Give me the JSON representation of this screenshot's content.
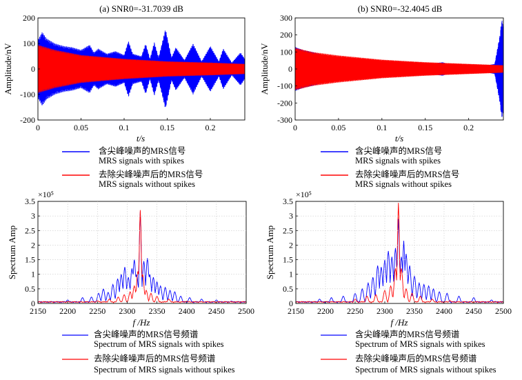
{
  "chart_data": [
    {
      "id": "a",
      "type": "line",
      "title": "(a) SNR0=-31.7039 dB",
      "xlabel": "t/s",
      "ylabel": "Amplitude/nV",
      "xlim": [
        0,
        0.24
      ],
      "ylim": [
        -200,
        200
      ],
      "xticks": [
        "0",
        "0.05",
        "0.1",
        "0.15",
        "0.2"
      ],
      "xtick_values": [
        0,
        0.05,
        0.1,
        0.15,
        0.2
      ],
      "yticks": [
        "200",
        "100",
        "0",
        "-100",
        "-200"
      ],
      "ytick_values": [
        200,
        100,
        0,
        -100,
        -200
      ],
      "series": [
        {
          "name": "含尖峰噪声的MRS信号 / MRS signals with spikes",
          "color": "#0000ff",
          "envelope": [
            [
              0,
              115
            ],
            [
              0.005,
              145
            ],
            [
              0.01,
              120
            ],
            [
              0.02,
              100
            ],
            [
              0.03,
              90
            ],
            [
              0.04,
              85
            ],
            [
              0.05,
              75
            ],
            [
              0.06,
              95
            ],
            [
              0.065,
              65
            ],
            [
              0.07,
              80
            ],
            [
              0.08,
              60
            ],
            [
              0.09,
              70
            ],
            [
              0.1,
              55
            ],
            [
              0.105,
              110
            ],
            [
              0.11,
              60
            ],
            [
              0.12,
              50
            ],
            [
              0.125,
              100
            ],
            [
              0.13,
              40
            ],
            [
              0.135,
              105
            ],
            [
              0.14,
              45
            ],
            [
              0.148,
              158
            ],
            [
              0.155,
              45
            ],
            [
              0.16,
              85
            ],
            [
              0.17,
              35
            ],
            [
              0.18,
              100
            ],
            [
              0.19,
              30
            ],
            [
              0.2,
              90
            ],
            [
              0.21,
              30
            ],
            [
              0.215,
              80
            ],
            [
              0.225,
              25
            ],
            [
              0.235,
              65
            ],
            [
              0.24,
              40
            ]
          ]
        },
        {
          "name": "去除尖峰噪声后的MRS信号 / MRS signals without spikes",
          "color": "#ff0000",
          "envelope": [
            [
              0,
              95
            ],
            [
              0.02,
              75
            ],
            [
              0.05,
              55
            ],
            [
              0.1,
              40
            ],
            [
              0.15,
              30
            ],
            [
              0.2,
              25
            ],
            [
              0.24,
              20
            ]
          ]
        }
      ]
    },
    {
      "id": "b",
      "type": "line",
      "title": "(b) SNR0=-32.4045 dB",
      "xlabel": "t/s",
      "ylabel": "Amplitude/nV",
      "xlim": [
        0,
        0.24
      ],
      "ylim": [
        -300,
        300
      ],
      "xticks": [
        "0",
        "0.05",
        "0.1",
        "0.15",
        "0.2"
      ],
      "xtick_values": [
        0,
        0.05,
        0.1,
        0.15,
        0.2
      ],
      "yticks": [
        "300",
        "200",
        "100",
        "0",
        "-100",
        "-200",
        "-300"
      ],
      "ytick_values": [
        300,
        200,
        100,
        0,
        -100,
        -200,
        -300
      ],
      "series": [
        {
          "name": "含尖峰噪声的MRS信号 / MRS signals with spikes",
          "color": "#0000ff",
          "envelope": [
            [
              0,
              130
            ],
            [
              0.01,
              110
            ],
            [
              0.02,
              100
            ],
            [
              0.03,
              85
            ],
            [
              0.04,
              75
            ],
            [
              0.05,
              70
            ],
            [
              0.055,
              40
            ],
            [
              0.06,
              55
            ],
            [
              0.07,
              45
            ],
            [
              0.08,
              60
            ],
            [
              0.09,
              40
            ],
            [
              0.1,
              50
            ],
            [
              0.11,
              35
            ],
            [
              0.12,
              45
            ],
            [
              0.13,
              30
            ],
            [
              0.15,
              25
            ],
            [
              0.17,
              40
            ],
            [
              0.18,
              20
            ],
            [
              0.2,
              25
            ],
            [
              0.22,
              20
            ],
            [
              0.23,
              30
            ],
            [
              0.236,
              200
            ],
            [
              0.238,
              290
            ],
            [
              0.24,
              260
            ]
          ]
        },
        {
          "name": "去除尖峰噪声后的MRS信号 / MRS signals without spikes",
          "color": "#ff0000",
          "envelope": [
            [
              0,
              125
            ],
            [
              0.02,
              100
            ],
            [
              0.05,
              80
            ],
            [
              0.1,
              55
            ],
            [
              0.15,
              40
            ],
            [
              0.2,
              30
            ],
            [
              0.24,
              22
            ]
          ]
        }
      ]
    },
    {
      "id": "c",
      "type": "line",
      "title": "",
      "xlabel": "f /Hz",
      "ylabel": "Spectrum Amp",
      "scale": "×10⁵",
      "xlim": [
        2150,
        2500
      ],
      "ylim": [
        0,
        3.5
      ],
      "xticks": [
        "2150",
        "2200",
        "2250",
        "2300",
        "2350",
        "2400",
        "2450",
        "2500"
      ],
      "xtick_values": [
        2150,
        2200,
        2250,
        2300,
        2350,
        2400,
        2450,
        2500
      ],
      "yticks": [
        "3.5",
        "3",
        "2.5",
        "2",
        "1.5",
        "1",
        "0.5",
        "0"
      ],
      "ytick_values": [
        3.5,
        3,
        2.5,
        2,
        1.5,
        1,
        0.5,
        0
      ],
      "series": [
        {
          "name": "含尖峰噪声的MRS信号频谱 / Spectrum of MRS signals with spikes",
          "color": "#0000ff",
          "peaks": [
            [
              2200,
              0.12
            ],
            [
              2225,
              0.2
            ],
            [
              2240,
              0.22
            ],
            [
              2252,
              0.35
            ],
            [
              2260,
              0.5
            ],
            [
              2268,
              0.38
            ],
            [
              2276,
              0.65
            ],
            [
              2284,
              0.85
            ],
            [
              2290,
              1.0
            ],
            [
              2296,
              1.25
            ],
            [
              2302,
              0.9
            ],
            [
              2308,
              1.2
            ],
            [
              2312,
              1.5
            ],
            [
              2316,
              1.0
            ],
            [
              2322,
              3.15
            ],
            [
              2328,
              1.45
            ],
            [
              2334,
              1.55
            ],
            [
              2338,
              1.0
            ],
            [
              2344,
              0.9
            ],
            [
              2350,
              0.75
            ],
            [
              2356,
              0.6
            ],
            [
              2364,
              0.55
            ],
            [
              2372,
              0.45
            ],
            [
              2380,
              0.4
            ],
            [
              2390,
              0.25
            ],
            [
              2405,
              0.2
            ],
            [
              2425,
              0.15
            ],
            [
              2450,
              0.12
            ],
            [
              2475,
              0.08
            ]
          ]
        },
        {
          "name": "去除尖峰噪声后的MRS信号频谱 / Spectrum of MRS signals without spikes",
          "color": "#ff0000",
          "peaks": [
            [
              2250,
              0.1
            ],
            [
              2270,
              0.15
            ],
            [
              2285,
              0.22
            ],
            [
              2295,
              0.3
            ],
            [
              2305,
              0.4
            ],
            [
              2312,
              0.6
            ],
            [
              2318,
              1.1
            ],
            [
              2322,
              3.2
            ],
            [
              2326,
              1.0
            ],
            [
              2332,
              0.45
            ],
            [
              2340,
              0.35
            ],
            [
              2350,
              0.25
            ],
            [
              2370,
              0.15
            ],
            [
              2400,
              0.08
            ]
          ]
        }
      ]
    },
    {
      "id": "d",
      "type": "line",
      "title": "",
      "xlabel": "f /Hz",
      "ylabel": "Spectrum Amp",
      "scale": "×10⁵",
      "xlim": [
        2150,
        2500
      ],
      "ylim": [
        0,
        3.5
      ],
      "xticks": [
        "2150",
        "2200",
        "2250",
        "2300",
        "2350",
        "2400",
        "2450",
        "2500"
      ],
      "xtick_values": [
        2150,
        2200,
        2250,
        2300,
        2350,
        2400,
        2450,
        2500
      ],
      "yticks": [
        "3.5",
        "3",
        "2.5",
        "2",
        "1.5",
        "1",
        "0.5",
        "0"
      ],
      "ytick_values": [
        3.5,
        3,
        2.5,
        2,
        1.5,
        1,
        0.5,
        0
      ],
      "series": [
        {
          "name": "含尖峰噪声的MRS信号频谱 / Spectrum of MRS signals with spikes",
          "color": "#0000ff",
          "peaks": [
            [
              2190,
              0.15
            ],
            [
              2210,
              0.2
            ],
            [
              2230,
              0.25
            ],
            [
              2250,
              0.35
            ],
            [
              2262,
              0.5
            ],
            [
              2272,
              0.7
            ],
            [
              2280,
              0.9
            ],
            [
              2288,
              1.3
            ],
            [
              2294,
              1.25
            ],
            [
              2300,
              1.5
            ],
            [
              2306,
              1.8
            ],
            [
              2312,
              1.6
            ],
            [
              2318,
              1.9
            ],
            [
              2323,
              2.9
            ],
            [
              2328,
              1.6
            ],
            [
              2332,
              2.15
            ],
            [
              2336,
              1.7
            ],
            [
              2342,
              1.3
            ],
            [
              2350,
              0.95
            ],
            [
              2358,
              0.7
            ],
            [
              2366,
              0.65
            ],
            [
              2374,
              0.6
            ],
            [
              2382,
              0.5
            ],
            [
              2392,
              0.4
            ],
            [
              2405,
              0.35
            ],
            [
              2425,
              0.25
            ],
            [
              2450,
              0.2
            ],
            [
              2480,
              0.12
            ]
          ]
        },
        {
          "name": "去除尖峰噪声后的MRS信号频谱 / Spectrum of MRS signals without spikes",
          "color": "#ff0000",
          "peaks": [
            [
              2250,
              0.15
            ],
            [
              2270,
              0.25
            ],
            [
              2285,
              0.3
            ],
            [
              2300,
              0.45
            ],
            [
              2310,
              0.6
            ],
            [
              2318,
              1.2
            ],
            [
              2323,
              3.45
            ],
            [
              2328,
              1.2
            ],
            [
              2336,
              0.5
            ],
            [
              2346,
              0.35
            ],
            [
              2360,
              0.25
            ],
            [
              2380,
              0.15
            ],
            [
              2410,
              0.1
            ]
          ]
        }
      ]
    }
  ],
  "legends": {
    "a": {
      "blue_cn": "含尖峰噪声的MRS信号",
      "blue_en": "MRS signals with spikes",
      "red_cn": "去除尖峰噪声后的MRS信号",
      "red_en": "MRS signals without spikes"
    },
    "b": {
      "blue_cn": "含尖峰噪声的MRS信号",
      "blue_en": "MRS signals with spikes",
      "red_cn": "去除尖峰噪声后的MRS信号",
      "red_en": "MRS signals without spikes"
    },
    "c": {
      "blue_cn": "含尖峰噪声的MRS信号频谱",
      "blue_en": "Spectrum of MRS signals with spikes",
      "red_cn": "去除尖峰噪声后的MRS信号频谱",
      "red_en": "Spectrum of MRS signals without spikes"
    },
    "d": {
      "blue_cn": "含尖峰噪声的MRS信号频谱",
      "blue_en": "Spectrum of MRS signals with spikes",
      "red_cn": "去除尖峰噪声后的MRS信号频谱",
      "red_en": "Spectrum of MRS signals without spikes"
    }
  }
}
